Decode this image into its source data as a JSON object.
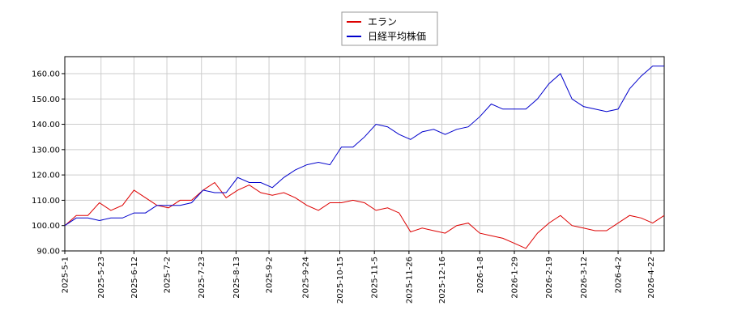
{
  "chart_data": {
    "type": "line",
    "x": [
      "2025-5-1",
      "2025-5-8",
      "2025-5-15",
      "2025-5-22",
      "2025-5-29",
      "2025-6-5",
      "2025-6-12",
      "2025-6-19",
      "2025-6-26",
      "2025-7-3",
      "2025-7-10",
      "2025-7-17",
      "2025-7-24",
      "2025-7-31",
      "2025-8-7",
      "2025-8-14",
      "2025-8-21",
      "2025-8-28",
      "2025-9-4",
      "2025-9-11",
      "2025-9-18",
      "2025-9-25",
      "2025-10-2",
      "2025-10-9",
      "2025-10-16",
      "2025-10-23",
      "2025-10-30",
      "2025-11-6",
      "2025-11-13",
      "2025-11-20",
      "2025-11-27",
      "2025-12-4",
      "2025-12-11",
      "2025-12-18",
      "2025-12-25",
      "2026-1-1",
      "2026-1-8",
      "2026-1-15",
      "2026-1-22",
      "2026-1-29",
      "2026-2-5",
      "2026-2-12",
      "2026-2-19",
      "2026-2-26",
      "2026-3-5",
      "2026-3-12",
      "2026-3-19",
      "2026-3-26",
      "2026-4-2",
      "2026-4-9",
      "2026-4-16",
      "2026-4-23",
      "2026-4-30"
    ],
    "series": [
      {
        "name": "エラン",
        "color": "#dd0000",
        "values": [
          100,
          104,
          104,
          109,
          106,
          108,
          114,
          111,
          108,
          107,
          110,
          110,
          114,
          117,
          111,
          114,
          116,
          113,
          112,
          113,
          111,
          108,
          106,
          109,
          109,
          110,
          109,
          106,
          107,
          105,
          97.5,
          99,
          98,
          97,
          100,
          101,
          97,
          96,
          95,
          93,
          91,
          97,
          101,
          104,
          100,
          99,
          98,
          98,
          101,
          104,
          103,
          101,
          104
        ]
      },
      {
        "name": "日経平均株価",
        "color": "#0000cc",
        "values": [
          100,
          103,
          103,
          102,
          103,
          103,
          105,
          105,
          108,
          108,
          108,
          109,
          114,
          113,
          113,
          119,
          117,
          117,
          115,
          119,
          122,
          124,
          125,
          124,
          131,
          131,
          135,
          140,
          139,
          136,
          134,
          137,
          138,
          136,
          138,
          139,
          143,
          148,
          146,
          146,
          146,
          150,
          156,
          160,
          150,
          147,
          146,
          145,
          146,
          154,
          159,
          163,
          163
        ]
      }
    ],
    "xlim": [
      "2025-5-1",
      "2026-4-30"
    ],
    "xticks": [
      "2025-5-1",
      "2025-5-23",
      "2025-6-12",
      "2025-7-2",
      "2025-7-23",
      "2025-8-13",
      "2025-9-2",
      "2025-9-24",
      "2025-10-15",
      "2025-11-5",
      "2025-11-26",
      "2025-12-16",
      "2026-1-8",
      "2026-1-29",
      "2026-2-19",
      "2026-3-12",
      "2026-4-2",
      "2026-4-22"
    ],
    "ylim": [
      90,
      166.7
    ],
    "yticks": [
      {
        "value": 90,
        "label": "90.00"
      },
      {
        "value": 100,
        "label": "100.00"
      },
      {
        "value": 110,
        "label": "110.00"
      },
      {
        "value": 120,
        "label": "120.00"
      },
      {
        "value": 130,
        "label": "130.00"
      },
      {
        "value": 140,
        "label": "140.00"
      },
      {
        "value": 150,
        "label": "150.00"
      },
      {
        "value": 160,
        "label": "160.00"
      }
    ],
    "grid": true,
    "legend": "top"
  }
}
